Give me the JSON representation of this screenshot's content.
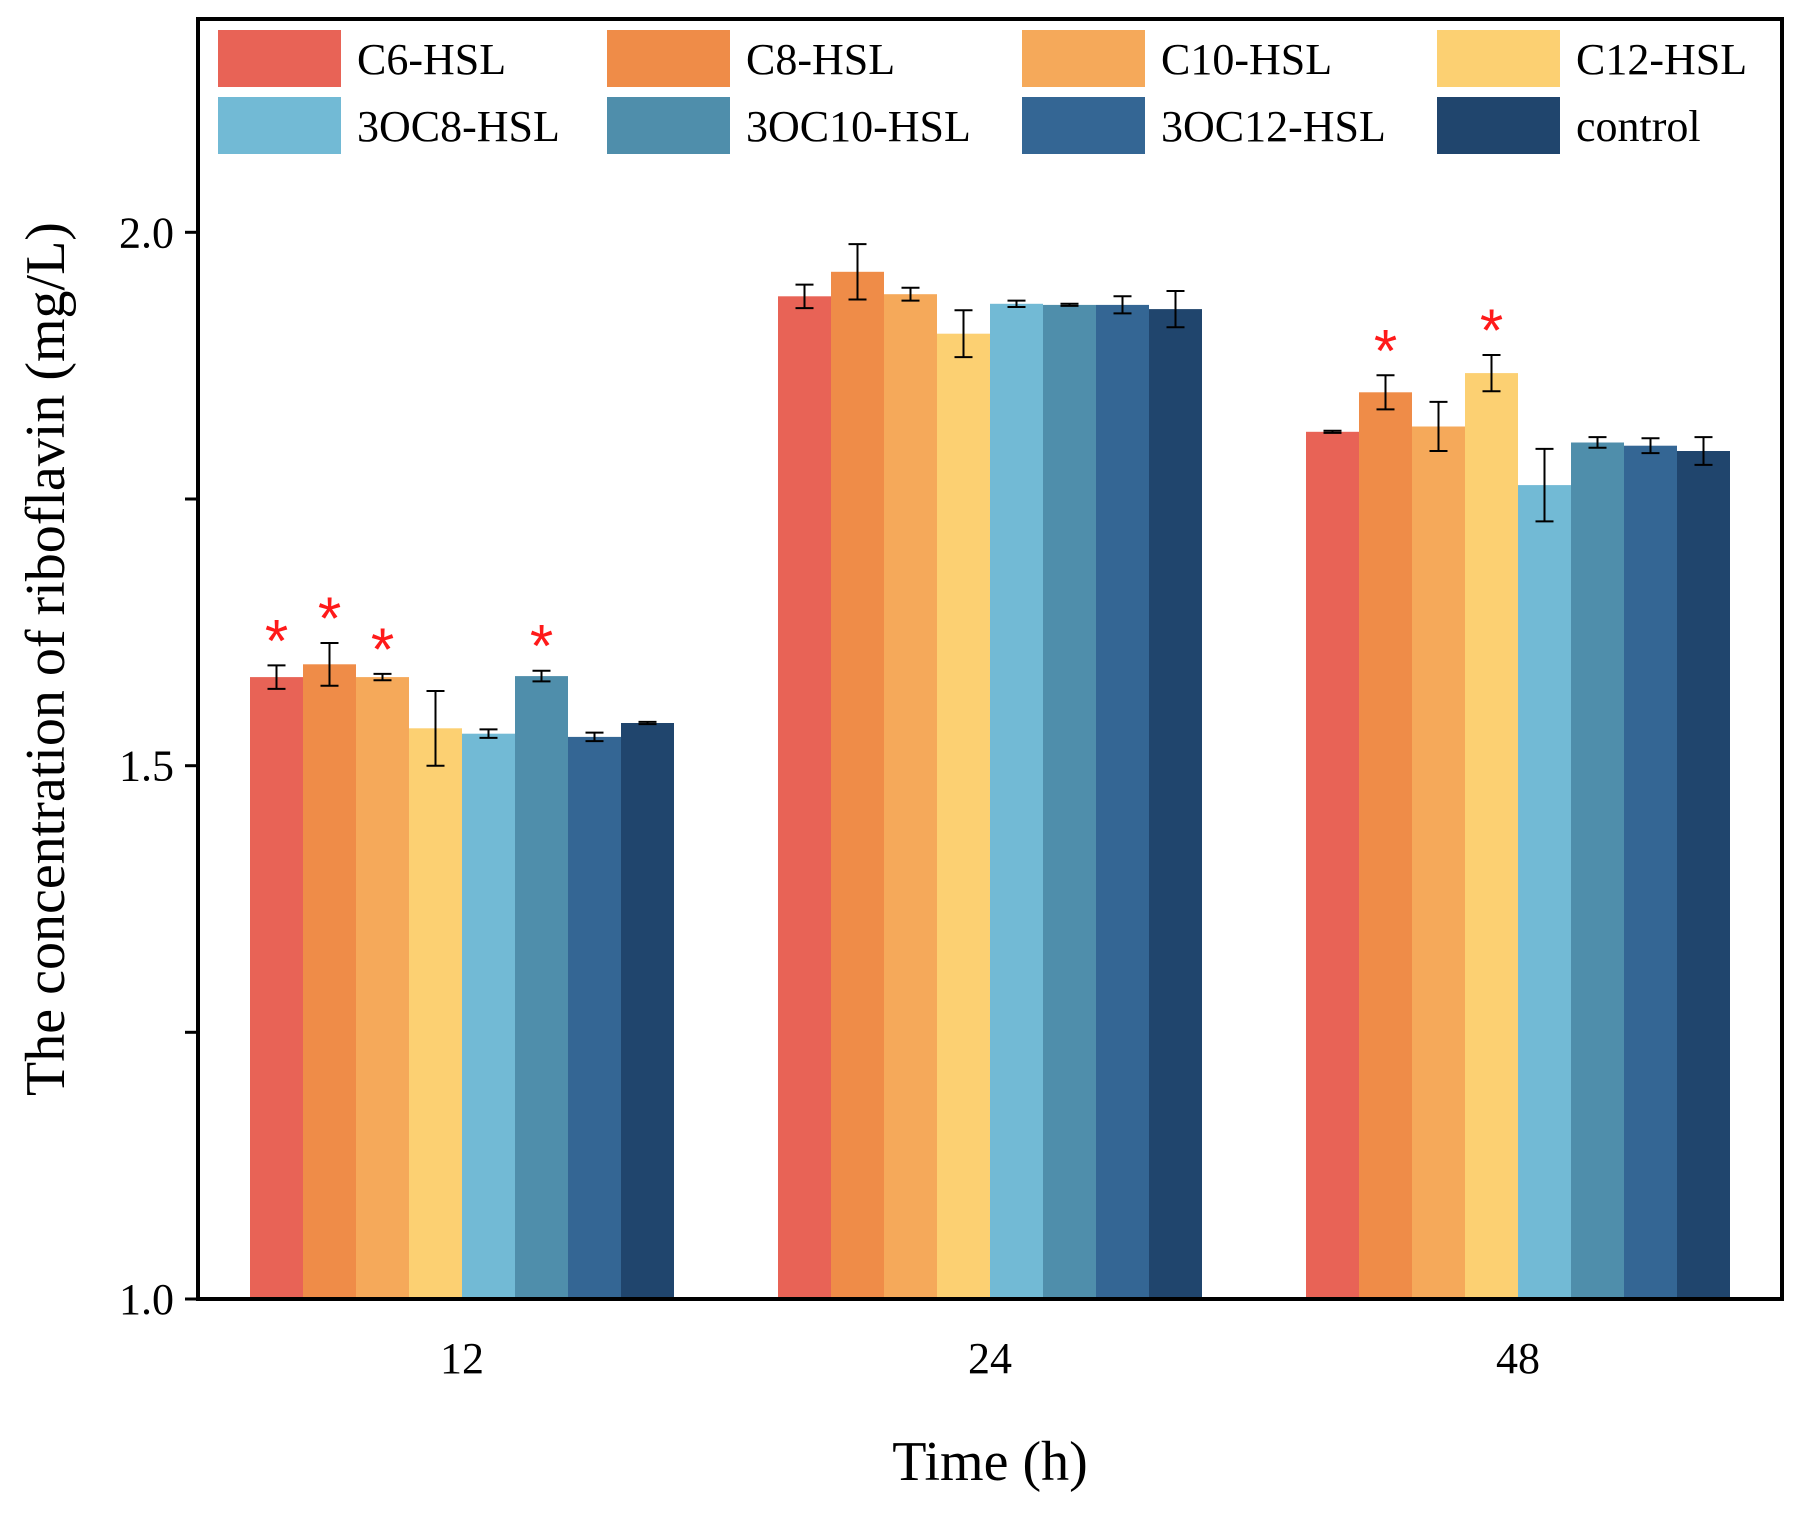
{
  "chart_data": {
    "type": "bar",
    "title": "",
    "xlabel": "Time (h)",
    "ylabel": "The concentration of riboflavin (mg/L)",
    "ylim": [
      1.0,
      2.2
    ],
    "ytick_values": [
      1.0,
      1.25,
      1.5,
      1.75,
      2.0
    ],
    "ytick_labels": [
      "1.0",
      "",
      "1.5",
      "",
      "2.0"
    ],
    "categories": [
      "12",
      "24",
      "48"
    ],
    "significance_marker": "*",
    "legend_position": "top",
    "series": [
      {
        "name": "C6-HSL",
        "color": "#e86356",
        "values": [
          1.583,
          1.94,
          1.813
        ],
        "errors": [
          0.011,
          0.011,
          0.001
        ],
        "significant": [
          true,
          false,
          false
        ]
      },
      {
        "name": "C8-HSL",
        "color": "#ef8c48",
        "values": [
          1.595,
          1.963,
          1.85
        ],
        "errors": [
          0.02,
          0.026,
          0.016
        ],
        "significant": [
          true,
          false,
          true
        ]
      },
      {
        "name": "C10-HSL",
        "color": "#f5a95a",
        "values": [
          1.583,
          1.942,
          1.818
        ],
        "errors": [
          0.003,
          0.006,
          0.023
        ],
        "significant": [
          true,
          false,
          false
        ]
      },
      {
        "name": "C12-HSL",
        "color": "#fcd072",
        "values": [
          1.535,
          1.905,
          1.868
        ],
        "errors": [
          0.035,
          0.022,
          0.017
        ],
        "significant": [
          false,
          false,
          true
        ]
      },
      {
        "name": "3OC8-HSL",
        "color": "#72bad5",
        "values": [
          1.53,
          1.933,
          1.763
        ],
        "errors": [
          0.004,
          0.003,
          0.034
        ],
        "significant": [
          false,
          false,
          false
        ]
      },
      {
        "name": "3OC10-HSL",
        "color": "#4f8eab",
        "values": [
          1.584,
          1.932,
          1.803
        ],
        "errors": [
          0.005,
          0.001,
          0.005
        ],
        "significant": [
          true,
          false,
          false
        ]
      },
      {
        "name": "3OC12-HSL",
        "color": "#346694",
        "values": [
          1.527,
          1.932,
          1.8
        ],
        "errors": [
          0.004,
          0.008,
          0.007
        ],
        "significant": [
          false,
          false,
          false
        ]
      },
      {
        "name": "control",
        "color": "#20456d",
        "values": [
          1.54,
          1.928,
          1.795
        ],
        "errors": [
          0.001,
          0.017,
          0.013
        ],
        "significant": [
          false,
          false,
          false
        ]
      }
    ]
  }
}
